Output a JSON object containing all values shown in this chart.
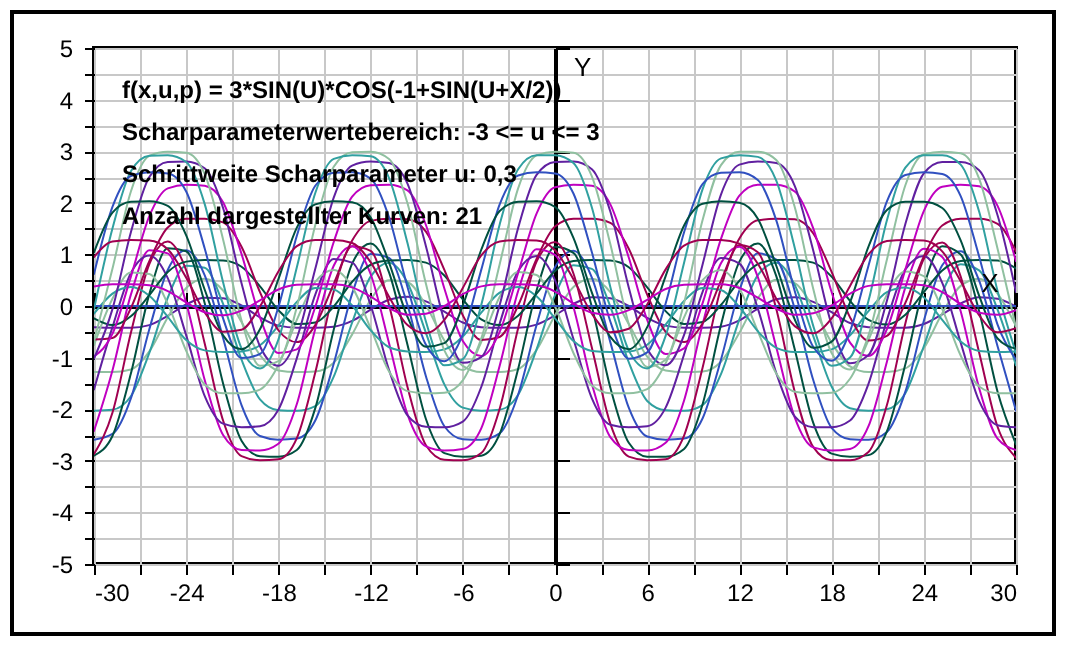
{
  "chart_data": {
    "type": "line",
    "annotations": [
      "f(x,u,p) = 3*SIN(U)*COS(-1+SIN(U+X/2))",
      "Scharparameterwertebereich: -3 <= u <= 3",
      "Schrittweite Scharparameter u: 0,3",
      "Anzahl dargestellter Kurven: 21"
    ],
    "xlabel": "X",
    "ylabel": "Y",
    "x": [
      -30,
      -28.8,
      -27.6,
      -26.4,
      -25.2,
      -24,
      -22.8,
      -21.6,
      -20.4,
      -19.2,
      -18,
      -16.8,
      -15.6,
      -14.4,
      -13.2,
      -12,
      -10.8,
      -9.6,
      -8.4,
      -7.2,
      -6,
      -4.8,
      -3.6,
      -2.4,
      -1.2,
      0,
      1.2,
      2.4,
      3.6,
      4.8,
      6,
      7.2,
      8.4,
      9.6,
      10.8,
      12,
      13.2,
      14.4,
      15.6,
      16.8,
      18,
      19.2,
      20.4,
      21.6,
      22.8,
      24,
      25.2,
      26.4,
      27.6,
      28.8,
      30
    ],
    "xlim": [
      -30,
      30
    ],
    "ylim": [
      -5,
      5
    ],
    "xticks": [
      -30,
      {
        "value": -27,
        "label": null
      },
      -24,
      {
        "value": -21,
        "label": null
      },
      -18,
      {
        "value": -15,
        "label": null
      },
      -12,
      {
        "value": -9,
        "label": null
      },
      -6,
      {
        "value": -3,
        "label": null
      },
      0,
      {
        "value": 3,
        "label": null
      },
      6,
      {
        "value": 9,
        "label": null
      },
      12,
      {
        "value": 15,
        "label": null
      },
      18,
      {
        "value": 21,
        "label": null
      },
      24,
      {
        "value": 27,
        "label": null
      },
      30
    ],
    "yticks": [
      -5,
      {
        "value": -4.5,
        "label": null
      },
      -4,
      {
        "value": -3.5,
        "label": null
      },
      -3,
      {
        "value": -2.5,
        "label": null
      },
      -2,
      {
        "value": -1.5,
        "label": null
      },
      -1,
      {
        "value": -0.5,
        "label": null
      },
      0,
      {
        "value": 0.5,
        "label": null
      },
      1,
      {
        "value": 1.5,
        "label": null
      },
      2,
      {
        "value": 2.5,
        "label": null
      },
      3,
      {
        "value": 3.5,
        "label": null
      },
      4,
      {
        "value": 4.5,
        "label": null
      },
      5
    ],
    "grid": true,
    "marker": "none",
    "line_style": "solid",
    "series": [
      {
        "color": "#6020a0",
        "values": [
          -0.41,
          -0.42,
          -0.42,
          -0.37,
          -0.19,
          0.03,
          0.16,
          0.15,
          0.01,
          -0.22,
          -0.38,
          -0.42,
          -0.42,
          -0.4,
          -0.29,
          -0.07,
          0.12,
          0.18,
          0.09,
          -0.11,
          -0.32,
          -0.41,
          -0.42,
          -0.42,
          -0.36,
          -0.18,
          0.04,
          0.17,
          0.15,
          0,
          -0.23,
          -0.38,
          -0.42,
          -0.42,
          -0.4,
          -0.28,
          -0.05,
          0.13,
          0.17,
          0.08,
          -0.12,
          -0.33,
          -0.41,
          -0.42,
          -0.42,
          -0.35,
          -0.16,
          0.05,
          0.17,
          0.14,
          -0.01
        ]
      },
      {
        "color": "#90c0a0",
        "values": [
          -1.28,
          -1.28,
          -1.23,
          -0.88,
          -0.22,
          0.35,
          0.53,
          0.3,
          -0.31,
          -0.95,
          -1.25,
          -1.28,
          -1.27,
          -1.1,
          -0.55,
          0.12,
          0.5,
          0.46,
          0.01,
          -0.67,
          -1.16,
          -1.28,
          -1.28,
          -1.22,
          -0.85,
          -0.18,
          0.37,
          0.53,
          0.27,
          -0.35,
          -0.98,
          -1.25,
          -1.28,
          -1.27,
          -1.08,
          -0.52,
          0.15,
          0.51,
          0.44,
          -0.03,
          -0.71,
          -1.17,
          -1.28,
          -1.28,
          -1.21,
          -0.82,
          -0.14,
          0.39,
          0.53,
          0.24,
          -0.39
        ]
      },
      {
        "color": "#30a0a0",
        "values": [
          -2.03,
          -2.01,
          -1.75,
          -0.91,
          0.16,
          0.78,
          0.74,
          0.04,
          -1.04,
          -1.81,
          -2.02,
          -2.03,
          -1.94,
          -1.37,
          -0.32,
          0.57,
          0.84,
          0.45,
          -0.52,
          -1.52,
          -1.97,
          -2.03,
          -2.01,
          -1.72,
          -0.84,
          0.21,
          0.79,
          0.72,
          -0.01,
          -1.09,
          -1.84,
          -2.02,
          -2.03,
          -1.92,
          -1.32,
          -0.26,
          0.6,
          0.84,
          0.41,
          -0.58,
          -1.56,
          -1.98,
          -2.03,
          -2.0,
          -1.69,
          -0.78,
          0.26,
          0.81,
          0.69,
          -0.07,
          -1.15
        ]
      },
      {
        "color": "#3050c0",
        "values": [
          -2.59,
          -2.48,
          -1.79,
          -0.45,
          0.7,
          1.08,
          0.6,
          -0.62,
          -1.92,
          -2.52,
          -2.59,
          -2.57,
          -2.22,
          -1.12,
          0.24,
          1.01,
          0.93,
          0.02,
          -1.36,
          -2.33,
          -2.58,
          -2.59,
          -2.47,
          -1.72,
          -0.37,
          0.75,
          1.07,
          0.55,
          -0.7,
          -1.97,
          -2.53,
          -2.59,
          -2.57,
          -2.18,
          -1.04,
          0.3,
          1.02,
          0.9,
          -0.05,
          -1.43,
          -2.36,
          -2.58,
          -2.59,
          -2.44,
          -1.66,
          -0.29,
          0.79,
          1.06,
          0.49,
          -0.78,
          -2.03
        ]
      },
      {
        "color": "#005040",
        "values": [
          -2.9,
          -2.52,
          -1.31,
          0.23,
          1.12,
          1.06,
          0.06,
          -1.5,
          -2.61,
          -2.91,
          -2.92,
          -2.79,
          -1.98,
          -0.46,
          0.82,
          1.21,
          0.65,
          -0.75,
          -2.19,
          -2.85,
          -2.92,
          -2.9,
          -2.48,
          -1.22,
          0.3,
          1.15,
          1.03,
          -0.02,
          -1.58,
          -2.65,
          -2.92,
          -2.92,
          -2.77,
          -1.91,
          -0.37,
          0.86,
          1.21,
          0.58,
          -0.84,
          -2.26,
          -2.86,
          -2.92,
          -2.89,
          -2.43,
          -1.13,
          0.38,
          1.16,
          1.0,
          -0.1,
          -1.66,
          -2.68
        ]
      },
      {
        "color": "#a00050",
        "values": [
          -2.87,
          -2.07,
          -0.52,
          0.81,
          1.25,
          0.69,
          -0.72,
          -2.22,
          -2.91,
          -2.99,
          -2.97,
          -2.56,
          -1.29,
          0.28,
          1.16,
          1.07,
          0.02,
          -1.57,
          -2.7,
          -2.98,
          -2.99,
          -2.85,
          -1.99,
          -0.43,
          0.86,
          1.24,
          0.63,
          -0.81,
          -2.28,
          -2.92,
          -2.99,
          -2.97,
          -2.51,
          -1.2,
          0.35,
          1.18,
          1.04,
          -0.06,
          -1.66,
          -2.73,
          -2.99,
          -2.99,
          -2.83,
          -1.92,
          -0.34,
          0.91,
          1.23,
          0.57,
          -0.9,
          -2.34,
          -2.94
        ]
      },
      {
        "color": "#c000c0",
        "values": [
          -2.42,
          -1.25,
          0.22,
          1.08,
          1.02,
          0.06,
          -1.43,
          -2.5,
          -2.79,
          -2.8,
          -2.67,
          -1.9,
          -0.44,
          0.78,
          1.16,
          0.62,
          -0.72,
          -2.1,
          -2.72,
          -2.8,
          -2.77,
          -2.37,
          -1.16,
          0.29,
          1.1,
          0.99,
          -0.02,
          -1.51,
          -2.54,
          -2.79,
          -2.8,
          -2.65,
          -1.83,
          -0.36,
          0.83,
          1.15,
          0.56,
          -0.8,
          -2.16,
          -2.74,
          -2.8,
          -2.77,
          -2.33,
          -1.08,
          0.36,
          1.11,
          0.95,
          -0.1,
          -1.59,
          -2.57,
          -2.79
        ]
      },
      {
        "color": "#6020a0",
        "values": [
          -1.62,
          -0.41,
          0.64,
          0.98,
          0.54,
          -0.57,
          -1.74,
          -2.28,
          -2.35,
          -2.33,
          -2.01,
          -1.01,
          0.22,
          0.91,
          0.84,
          0.02,
          -1.24,
          -2.12,
          -2.34,
          -2.35,
          -2.24,
          -1.57,
          -0.34,
          0.68,
          0.97,
          0.5,
          -0.64,
          -1.79,
          -2.3,
          -2.35,
          -2.33,
          -1.97,
          -0.94,
          0.27,
          0.93,
          0.82,
          -0.05,
          -1.3,
          -2.14,
          -2.35,
          -2.35,
          -2.22,
          -1.51,
          -0.27,
          0.71,
          0.97,
          0.45,
          -0.71,
          -1.84,
          -2.31,
          -2.35
        ]
      },
      {
        "color": "#90c0a0",
        "values": [
          -0.76,
          0.14,
          0.65,
          0.62,
          0.04,
          -0.87,
          -1.52,
          -1.69,
          -1.69,
          -1.62,
          -1.15,
          -0.27,
          0.47,
          0.7,
          0.37,
          -0.43,
          -1.27,
          -1.65,
          -1.69,
          -1.68,
          -1.44,
          -0.7,
          0.18,
          0.66,
          0.6,
          -0.01,
          -0.91,
          -1.54,
          -1.69,
          -1.69,
          -1.61,
          -1.11,
          -0.22,
          0.5,
          0.7,
          0.34,
          -0.49,
          -1.31,
          -1.66,
          -1.69,
          -1.68,
          -1.41,
          -0.66,
          0.22,
          0.67,
          0.58,
          -0.06,
          -0.96,
          -1.56,
          -1.69,
          -1.69
        ]
      },
      {
        "color": "#30a0a0",
        "values": [
          -0.15,
          0.24,
          0.37,
          0.2,
          -0.21,
          -0.66,
          -0.86,
          -0.89,
          -0.88,
          -0.76,
          -0.38,
          0.08,
          0.35,
          0.32,
          0.01,
          -0.47,
          -0.8,
          -0.88,
          -0.89,
          -0.84,
          -0.59,
          -0.13,
          0.26,
          0.37,
          0.19,
          -0.24,
          -0.68,
          -0.87,
          -0.89,
          -0.88,
          -0.75,
          -0.36,
          0.1,
          0.35,
          0.31,
          -0.02,
          -0.49,
          -0.81,
          -0.89,
          -0.89,
          -0.84,
          -0.57,
          -0.1,
          0.27,
          0.36,
          0.17,
          -0.27,
          -0.69,
          -0.87,
          -0.89,
          -0.88
        ]
      },
      {
        "color": "#3050c0",
        "values": [
          0,
          0,
          0,
          0,
          0,
          0,
          0,
          0,
          0,
          0,
          0,
          0,
          0,
          0,
          0,
          0,
          0,
          0,
          0,
          0,
          0,
          0,
          0,
          0,
          0,
          0,
          0,
          0,
          0,
          0,
          0,
          0,
          0,
          0,
          0,
          0,
          0,
          0,
          0,
          0,
          0,
          0,
          0,
          0,
          0,
          0,
          0,
          0,
          0,
          0,
          0
        ]
      },
      {
        "color": "#005040",
        "values": [
          -0.24,
          -0.37,
          -0.2,
          0.21,
          0.66,
          0.86,
          0.89,
          0.88,
          0.76,
          0.38,
          -0.08,
          -0.35,
          -0.32,
          -0.01,
          0.47,
          0.8,
          0.88,
          0.89,
          0.84,
          0.59,
          0.13,
          -0.26,
          -0.37,
          -0.19,
          0.24,
          0.68,
          0.87,
          0.89,
          0.88,
          0.75,
          0.36,
          -0.1,
          -0.35,
          -0.31,
          0.02,
          0.49,
          0.81,
          0.89,
          0.89,
          0.84,
          0.57,
          0.1,
          -0.27,
          -0.36,
          -0.17,
          0.27,
          0.69,
          0.87,
          0.89,
          0.88,
          0.73
        ]
      },
      {
        "color": "#a00050",
        "values": [
          -0.65,
          -0.62,
          -0.04,
          0.87,
          1.52,
          1.69,
          1.69,
          1.62,
          1.15,
          0.27,
          -0.47,
          -0.7,
          -0.37,
          0.43,
          1.27,
          1.65,
          1.69,
          1.68,
          1.44,
          0.7,
          -0.18,
          -0.66,
          -0.6,
          0.01,
          0.91,
          1.54,
          1.69,
          1.69,
          1.61,
          1.11,
          0.22,
          -0.5,
          -0.7,
          -0.34,
          0.49,
          1.31,
          1.66,
          1.69,
          1.68,
          1.41,
          0.66,
          -0.22,
          -0.67,
          -0.58,
          0.06,
          0.96,
          1.56,
          1.69,
          1.69,
          1.59,
          1.06
        ]
      },
      {
        "color": "#c000c0",
        "values": [
          -0.98,
          -0.54,
          0.57,
          1.74,
          2.28,
          2.35,
          2.33,
          2.01,
          1.01,
          -0.22,
          -0.91,
          -0.84,
          -0.02,
          1.24,
          2.12,
          2.34,
          2.35,
          2.24,
          1.57,
          0.34,
          -0.68,
          -0.97,
          -0.5,
          0.64,
          1.79,
          2.3,
          2.35,
          2.33,
          1.97,
          0.94,
          -0.27,
          -0.93,
          -0.82,
          0.05,
          1.3,
          2.14,
          2.35,
          2.35,
          2.22,
          1.51,
          0.27,
          -0.71,
          -0.97,
          -0.45,
          0.71,
          1.84,
          2.31,
          2.35,
          2.32,
          1.94,
          0.87
        ]
      },
      {
        "color": "#6020a0",
        "values": [
          -1.02,
          -0.06,
          1.43,
          2.5,
          2.79,
          2.8,
          2.67,
          1.9,
          0.44,
          -0.78,
          -1.16,
          -0.62,
          0.72,
          2.1,
          2.72,
          2.8,
          2.77,
          2.37,
          1.16,
          -0.29,
          -1.1,
          -0.99,
          0.02,
          1.51,
          2.54,
          2.79,
          2.8,
          2.65,
          1.83,
          0.36,
          -0.83,
          -1.15,
          -0.56,
          0.8,
          2.16,
          2.74,
          2.8,
          2.77,
          2.33,
          1.08,
          -0.36,
          -1.11,
          -0.95,
          0.1,
          1.59,
          2.57,
          2.79,
          2.79,
          2.63,
          1.76,
          0.27
        ]
      },
      {
        "color": "#90c0a0",
        "values": [
          -0.69,
          0.72,
          2.22,
          2.91,
          2.99,
          2.97,
          2.56,
          1.29,
          -0.28,
          -1.16,
          -1.07,
          -0.02,
          1.57,
          2.7,
          2.98,
          2.99,
          2.85,
          1.99,
          0.43,
          -0.86,
          -1.24,
          -0.63,
          0.81,
          2.28,
          2.92,
          2.99,
          2.97,
          2.51,
          1.2,
          -0.35,
          -1.18,
          -1.04,
          0.06,
          1.66,
          2.73,
          2.99,
          2.99,
          2.83,
          1.92,
          0.34,
          -0.91,
          -1.23,
          -0.57,
          0.9,
          2.34,
          2.94,
          2.99,
          2.96,
          2.47,
          1.11,
          -0.42
        ]
      },
      {
        "color": "#30a0a0",
        "values": [
          -0.06,
          1.5,
          2.61,
          2.91,
          2.92,
          2.79,
          1.98,
          0.46,
          -0.82,
          -1.21,
          -0.65,
          0.75,
          2.19,
          2.85,
          2.92,
          2.9,
          2.48,
          1.22,
          -0.3,
          -1.15,
          -1.03,
          0.02,
          1.58,
          2.65,
          2.92,
          2.92,
          2.77,
          1.91,
          0.37,
          -0.86,
          -1.21,
          -0.58,
          0.84,
          2.26,
          2.86,
          2.92,
          2.89,
          2.43,
          1.13,
          -0.38,
          -1.16,
          -1.0,
          0.1,
          1.66,
          2.68,
          2.92,
          2.92,
          2.74,
          1.83,
          0.29,
          -0.91
        ]
      },
      {
        "color": "#3050c0",
        "values": [
          0.62,
          1.92,
          2.52,
          2.59,
          2.57,
          2.22,
          1.12,
          -0.24,
          -1.01,
          -0.93,
          -0.02,
          1.36,
          2.33,
          2.58,
          2.59,
          2.47,
          1.72,
          0.37,
          -0.75,
          -1.07,
          -0.55,
          0.7,
          1.97,
          2.53,
          2.59,
          2.57,
          2.18,
          1.04,
          -0.3,
          -1.02,
          -0.9,
          0.05,
          1.43,
          2.36,
          2.58,
          2.59,
          2.44,
          1.66,
          0.29,
          -0.79,
          -1.06,
          -0.49,
          0.78,
          2.03,
          2.54,
          2.59,
          2.56,
          2.13,
          0.96,
          -0.36,
          -1.04
        ]
      },
      {
        "color": "#005040",
        "values": [
          1.04,
          1.81,
          2.02,
          2.03,
          1.94,
          1.37,
          0.32,
          -0.57,
          -0.84,
          -0.45,
          0.52,
          1.52,
          1.97,
          2.03,
          2.01,
          1.72,
          0.84,
          -0.21,
          -0.79,
          -0.72,
          0.01,
          1.09,
          1.84,
          2.02,
          2.03,
          1.92,
          1.32,
          0.26,
          -0.6,
          -0.84,
          -0.41,
          0.58,
          1.56,
          1.98,
          2.03,
          2.0,
          1.69,
          0.78,
          -0.26,
          -0.81,
          -0.69,
          0.07,
          1.15,
          1.86,
          2.02,
          2.02,
          1.9,
          1.27,
          0.2,
          -0.63,
          -0.83
        ]
      },
      {
        "color": "#a00050",
        "values": [
          0.95,
          1.25,
          1.28,
          1.27,
          1.1,
          0.55,
          -0.12,
          -0.5,
          -0.46,
          -0.01,
          0.67,
          1.16,
          1.28,
          1.28,
          1.22,
          0.85,
          0.18,
          -0.37,
          -0.53,
          -0.27,
          0.35,
          0.98,
          1.25,
          1.28,
          1.27,
          1.08,
          0.52,
          -0.15,
          -0.51,
          -0.44,
          0.03,
          0.71,
          1.17,
          1.28,
          1.28,
          1.21,
          0.82,
          0.14,
          -0.39,
          -0.53,
          -0.24,
          0.39,
          1.0,
          1.26,
          1.28,
          1.27,
          1.06,
          0.48,
          -0.18,
          -0.51,
          -0.43
        ]
      },
      {
        "color": "#c000c0",
        "values": [
          0.38,
          0.42,
          0.42,
          0.4,
          0.29,
          0.07,
          -0.12,
          -0.18,
          -0.09,
          0.11,
          0.32,
          0.41,
          0.42,
          0.42,
          0.36,
          0.18,
          -0.04,
          -0.17,
          -0.15,
          0,
          0.23,
          0.38,
          0.42,
          0.42,
          0.4,
          0.28,
          0.05,
          -0.13,
          -0.17,
          -0.08,
          0.12,
          0.33,
          0.41,
          0.42,
          0.42,
          0.35,
          0.16,
          -0.05,
          -0.17,
          -0.14,
          0.01,
          0.24,
          0.39,
          0.42,
          0.42,
          0.4,
          0.27,
          0.04,
          -0.13,
          -0.17,
          -0.08
        ]
      }
    ]
  }
}
